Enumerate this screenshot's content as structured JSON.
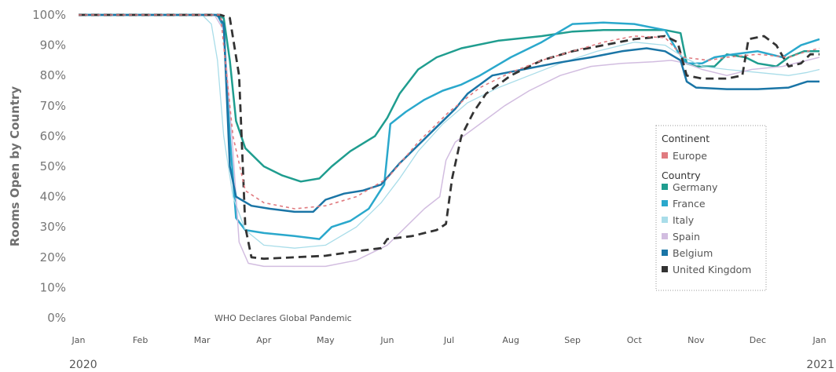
{
  "chart_data": {
    "type": "line",
    "ylabel": "Rooms Open by Country",
    "y_ticks": [
      "100%",
      "90%",
      "80%",
      "70%",
      "60%",
      "50%",
      "40%",
      "30%",
      "20%",
      "10%",
      "0%"
    ],
    "ylim": [
      0,
      100
    ],
    "x_ticks": [
      "Jan",
      "Feb",
      "Mar",
      "Apr",
      "May",
      "Jun",
      "Jul",
      "Aug",
      "Sep",
      "Oct",
      "Nov",
      "Dec",
      "Jan"
    ],
    "year_labels": [
      "2020",
      "2021"
    ],
    "annotation": "WHO Declares Global Pandemic",
    "legend": {
      "continent_title": "Continent",
      "continent_items": [
        {
          "name": "Europe",
          "color": "#e07b80"
        }
      ],
      "country_title": "Country",
      "country_items": [
        {
          "name": "Germany",
          "color": "#1f9d8f"
        },
        {
          "name": "France",
          "color": "#2aa8cc"
        },
        {
          "name": "Italy",
          "color": "#a9dde9"
        },
        {
          "name": "Spain",
          "color": "#d2bde0"
        },
        {
          "name": "Belgium",
          "color": "#1a75a6"
        },
        {
          "name": "United Kingdom",
          "color": "#333333"
        }
      ]
    },
    "series": [
      {
        "name": "Germany",
        "color": "#1f9d8f",
        "width": 2.5,
        "dash": "",
        "points": [
          [
            0,
            100
          ],
          [
            2.2,
            100
          ],
          [
            2.35,
            99
          ],
          [
            2.45,
            85
          ],
          [
            2.55,
            65
          ],
          [
            2.7,
            56
          ],
          [
            3.0,
            50
          ],
          [
            3.3,
            47
          ],
          [
            3.6,
            45
          ],
          [
            3.9,
            46
          ],
          [
            4.1,
            50
          ],
          [
            4.4,
            55
          ],
          [
            4.8,
            60
          ],
          [
            5.0,
            66
          ],
          [
            5.2,
            74
          ],
          [
            5.5,
            82
          ],
          [
            5.8,
            86
          ],
          [
            6.2,
            89
          ],
          [
            6.8,
            91.5
          ],
          [
            7.5,
            93
          ],
          [
            8,
            94.5
          ],
          [
            8.5,
            95
          ],
          [
            9,
            95
          ],
          [
            9.5,
            95
          ],
          [
            9.75,
            94
          ],
          [
            9.85,
            84
          ],
          [
            10,
            83
          ],
          [
            10.3,
            83
          ],
          [
            10.5,
            87
          ],
          [
            10.8,
            86
          ],
          [
            11,
            84
          ],
          [
            11.3,
            83
          ],
          [
            11.5,
            86
          ],
          [
            11.75,
            88
          ],
          [
            12,
            88
          ]
        ]
      },
      {
        "name": "France",
        "color": "#2aa8cc",
        "width": 2.5,
        "dash": "",
        "points": [
          [
            0,
            100
          ],
          [
            2.25,
            100
          ],
          [
            2.35,
            96
          ],
          [
            2.45,
            60
          ],
          [
            2.55,
            33
          ],
          [
            2.7,
            29
          ],
          [
            3.0,
            28
          ],
          [
            3.5,
            27
          ],
          [
            3.9,
            26
          ],
          [
            4.1,
            30
          ],
          [
            4.4,
            32
          ],
          [
            4.7,
            36
          ],
          [
            4.95,
            44
          ],
          [
            5.05,
            64
          ],
          [
            5.3,
            68
          ],
          [
            5.6,
            72
          ],
          [
            5.9,
            75
          ],
          [
            6.2,
            77
          ],
          [
            6.5,
            80
          ],
          [
            7.0,
            86
          ],
          [
            7.5,
            91
          ],
          [
            8,
            97
          ],
          [
            8.5,
            97.5
          ],
          [
            9,
            97
          ],
          [
            9.5,
            95
          ],
          [
            9.7,
            88
          ],
          [
            9.85,
            84
          ],
          [
            10.1,
            84
          ],
          [
            10.3,
            86
          ],
          [
            10.6,
            87
          ],
          [
            11,
            88
          ],
          [
            11.4,
            86
          ],
          [
            11.7,
            90
          ],
          [
            12,
            92
          ]
        ]
      },
      {
        "name": "Italy",
        "color": "#a9dde9",
        "width": 1.3,
        "dash": "",
        "points": [
          [
            0,
            100
          ],
          [
            2.0,
            100
          ],
          [
            2.15,
            97
          ],
          [
            2.25,
            85
          ],
          [
            2.35,
            60
          ],
          [
            2.5,
            40
          ],
          [
            2.7,
            29
          ],
          [
            3.0,
            24
          ],
          [
            3.5,
            23
          ],
          [
            4.0,
            24
          ],
          [
            4.5,
            30
          ],
          [
            4.9,
            38
          ],
          [
            5.2,
            46
          ],
          [
            5.5,
            55
          ],
          [
            5.9,
            64
          ],
          [
            6.3,
            71
          ],
          [
            6.8,
            76
          ],
          [
            7.3,
            80
          ],
          [
            7.8,
            84
          ],
          [
            8.4,
            88
          ],
          [
            9,
            91
          ],
          [
            9.5,
            90
          ],
          [
            9.8,
            86
          ],
          [
            10.1,
            83
          ],
          [
            10.5,
            82
          ],
          [
            11,
            81
          ],
          [
            11.5,
            80
          ],
          [
            11.8,
            81
          ],
          [
            12,
            82
          ]
        ]
      },
      {
        "name": "Spain",
        "color": "#d2bde0",
        "width": 1.5,
        "dash": "",
        "points": [
          [
            0,
            100
          ],
          [
            2.2,
            100
          ],
          [
            2.35,
            95
          ],
          [
            2.5,
            55
          ],
          [
            2.6,
            25
          ],
          [
            2.75,
            18
          ],
          [
            3.0,
            17
          ],
          [
            3.5,
            17
          ],
          [
            4.0,
            17
          ],
          [
            4.5,
            19
          ],
          [
            5.0,
            24
          ],
          [
            5.3,
            30
          ],
          [
            5.6,
            36
          ],
          [
            5.85,
            40
          ],
          [
            5.95,
            52
          ],
          [
            6.1,
            58
          ],
          [
            6.5,
            64
          ],
          [
            6.9,
            70
          ],
          [
            7.3,
            75
          ],
          [
            7.8,
            80
          ],
          [
            8.3,
            83
          ],
          [
            8.8,
            84
          ],
          [
            9.3,
            84.5
          ],
          [
            9.6,
            85
          ],
          [
            9.85,
            84
          ],
          [
            10.1,
            82
          ],
          [
            10.5,
            80
          ],
          [
            10.9,
            82
          ],
          [
            11.4,
            83
          ],
          [
            11.8,
            85
          ],
          [
            12,
            86
          ]
        ]
      },
      {
        "name": "Belgium",
        "color": "#1a75a6",
        "width": 2.5,
        "dash": "",
        "points": [
          [
            0,
            100
          ],
          [
            2.25,
            100
          ],
          [
            2.35,
            97
          ],
          [
            2.45,
            50
          ],
          [
            2.55,
            40
          ],
          [
            2.8,
            37
          ],
          [
            3.1,
            36
          ],
          [
            3.5,
            35
          ],
          [
            3.8,
            35
          ],
          [
            4.0,
            39
          ],
          [
            4.3,
            41
          ],
          [
            4.6,
            42
          ],
          [
            4.9,
            44
          ],
          [
            5.2,
            51
          ],
          [
            5.5,
            57
          ],
          [
            5.8,
            63
          ],
          [
            6.1,
            69
          ],
          [
            6.3,
            74
          ],
          [
            6.7,
            80
          ],
          [
            7.2,
            82
          ],
          [
            7.7,
            84
          ],
          [
            8.3,
            86
          ],
          [
            8.8,
            88
          ],
          [
            9.2,
            89
          ],
          [
            9.5,
            88
          ],
          [
            9.75,
            85
          ],
          [
            9.85,
            78
          ],
          [
            10.0,
            76
          ],
          [
            10.5,
            75.5
          ],
          [
            11,
            75.5
          ],
          [
            11.5,
            76
          ],
          [
            11.8,
            78
          ],
          [
            12,
            78
          ]
        ]
      },
      {
        "name": "United Kingdom",
        "color": "#333333",
        "width": 2.8,
        "dash": "10,6",
        "points": [
          [
            0,
            100
          ],
          [
            2.3,
            100
          ],
          [
            2.45,
            99
          ],
          [
            2.6,
            80
          ],
          [
            2.7,
            30
          ],
          [
            2.8,
            20
          ],
          [
            3.0,
            19.5
          ],
          [
            3.5,
            20
          ],
          [
            4.0,
            20.5
          ],
          [
            4.5,
            22
          ],
          [
            4.9,
            23
          ],
          [
            5.0,
            26
          ],
          [
            5.4,
            27
          ],
          [
            5.8,
            29
          ],
          [
            5.95,
            31
          ],
          [
            6.05,
            46
          ],
          [
            6.2,
            60
          ],
          [
            6.4,
            68
          ],
          [
            6.6,
            74
          ],
          [
            7.0,
            80
          ],
          [
            7.5,
            85
          ],
          [
            8,
            88
          ],
          [
            8.5,
            90
          ],
          [
            9,
            92
          ],
          [
            9.5,
            93
          ],
          [
            9.7,
            91
          ],
          [
            9.85,
            80
          ],
          [
            10.1,
            79
          ],
          [
            10.5,
            79
          ],
          [
            10.75,
            80
          ],
          [
            10.85,
            92
          ],
          [
            11.1,
            93
          ],
          [
            11.3,
            90
          ],
          [
            11.5,
            83
          ],
          [
            11.7,
            84
          ],
          [
            11.85,
            87
          ],
          [
            12,
            87
          ]
        ]
      },
      {
        "name": "Europe",
        "color": "#e07b80",
        "width": 1.6,
        "dash": "4,4",
        "points": [
          [
            0,
            100
          ],
          [
            2.3,
            100
          ],
          [
            2.5,
            60
          ],
          [
            2.7,
            42
          ],
          [
            3.0,
            38
          ],
          [
            3.5,
            36
          ],
          [
            4.0,
            37
          ],
          [
            4.5,
            40
          ],
          [
            5.0,
            46
          ],
          [
            5.5,
            58
          ],
          [
            6.0,
            68
          ],
          [
            6.5,
            76
          ],
          [
            7.0,
            81
          ],
          [
            7.5,
            85
          ],
          [
            8,
            88
          ],
          [
            8.5,
            91
          ],
          [
            9,
            93
          ],
          [
            9.5,
            92.5
          ],
          [
            9.8,
            86
          ],
          [
            10.2,
            85
          ],
          [
            10.5,
            86
          ],
          [
            11,
            87
          ],
          [
            11.5,
            86
          ],
          [
            11.8,
            88
          ],
          [
            12,
            89
          ]
        ]
      }
    ]
  }
}
